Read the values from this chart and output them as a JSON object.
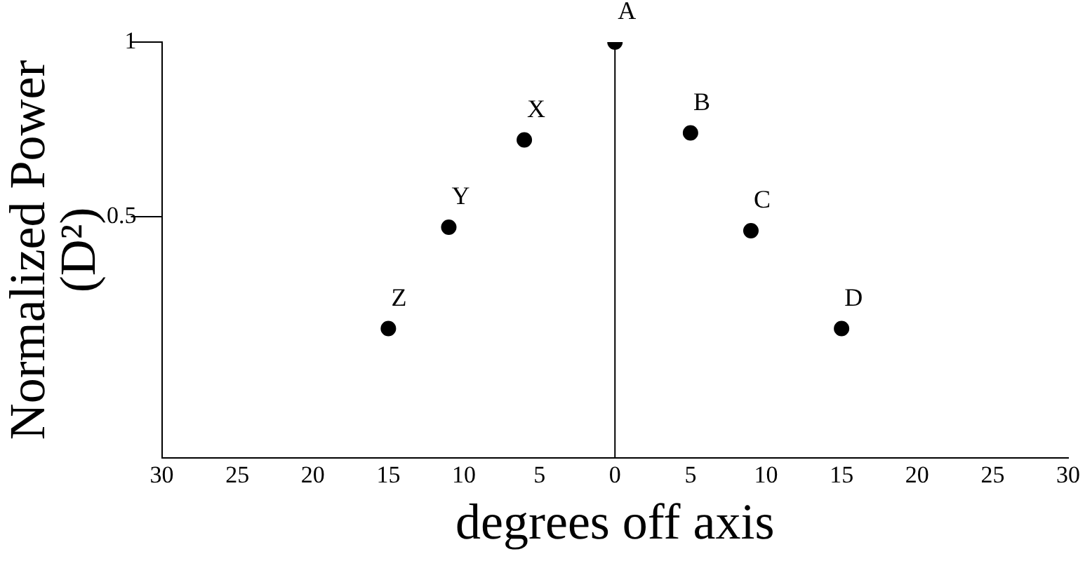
{
  "chart_data": {
    "type": "scatter",
    "xlabel": "degrees off axis",
    "ylabel": "Normalized Power (D²)",
    "x": [
      -15,
      -11,
      -6,
      0,
      5,
      9,
      15
    ],
    "values": [
      0.18,
      0.47,
      0.72,
      1,
      0.74,
      0.46,
      0.18
    ],
    "color": "#000000",
    "marker": "circle",
    "xlim": [
      -30,
      30
    ],
    "xticks": [
      {
        "value": -30,
        "label": "30"
      },
      {
        "value": -25,
        "label": "25"
      },
      {
        "value": -20,
        "label": "20"
      },
      {
        "value": -15,
        "label": "15"
      },
      {
        "value": -10,
        "label": "10"
      },
      {
        "value": -5,
        "label": "5"
      },
      0,
      5,
      10,
      15,
      20,
      25,
      30
    ],
    "ylim": [
      -0.19,
      1
    ],
    "yticks": [
      0.5,
      1
    ],
    "grid": false,
    "legend": false,
    "ref_lines": [
      {
        "axis": "x",
        "value": 0
      }
    ],
    "annotations": [
      {
        "text": "Z",
        "x": -15,
        "y": 0.18
      },
      {
        "text": "Y",
        "x": -11,
        "y": 0.47
      },
      {
        "text": "X",
        "x": -6,
        "y": 0.72
      },
      {
        "text": "A",
        "x": 0,
        "y": 1
      },
      {
        "text": "B",
        "x": 5,
        "y": 0.74
      },
      {
        "text": "C",
        "x": 9,
        "y": 0.46
      },
      {
        "text": "D",
        "x": 15,
        "y": 0.18
      }
    ]
  }
}
